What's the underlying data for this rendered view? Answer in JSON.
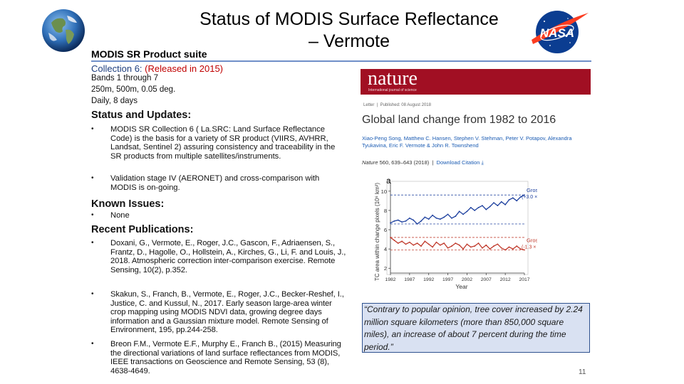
{
  "slide": {
    "title_line1": "Status of MODIS Surface Reflectance",
    "title_line2": "– Vermote",
    "page_number": "11"
  },
  "product": {
    "suite_label": "MODIS SR Product suite",
    "collection_prefix": "Collection 6: ",
    "collection_released": "(Released in 2015)",
    "bands": "Bands 1 through 7",
    "resolution": "250m, 500m, 0.05 deg.",
    "frequency": "Daily, 8 days"
  },
  "status": {
    "heading": "Status and Updates:",
    "items": [
      "MODIS SR Collection 6 ( La.SRC: Land Surface Reflectance Code) is the basis for a variety of SR product (VIIRS, AVHRR, Landsat, Sentinel 2) assuring consistency and traceability in the SR products from multiple satellites/instruments.",
      "Validation stage IV (AERONET) and cross-comparison with MODIS is on-going."
    ]
  },
  "issues": {
    "heading": "Known Issues:",
    "items": [
      "None"
    ]
  },
  "publications": {
    "heading": "Recent Publications:",
    "items": [
      "Doxani, G., Vermote, E., Roger, J.C., Gascon, F., Adriaensen, S., Frantz, D., Hagolle, O., Hollstein, A., Kirches, G., Li, F. and Louis, J., 2018. Atmospheric correction inter-comparison exercise. Remote Sensing, 10(2), p.352.",
      "Skakun, S., Franch, B., Vermote, E., Roger, J.C., Becker-Reshef, I., Justice, C. and Kussul, N., 2017. Early season large-area winter crop mapping using MODIS NDVI data, growing degree days information and a Gaussian mixture model. Remote Sensing of Environment, 195, pp.244-258.",
      "Breon F.M., Vermote E.F., Murphy E., Franch B., (2015) Measuring the directional variations of land surface reflectances from MODIS, IEEE transactions on Geoscience and Remote Sensing, 53 (8), 4638-4649."
    ]
  },
  "article": {
    "journal": "nature",
    "journal_sub": "International journal of science",
    "type": "Letter",
    "published": "Published: 08 August 2018",
    "title": "Global land change from 1982 to 2016",
    "authors": "Xiao-Peng Song, Matthew C. Hansen, Stephen V. Stehman, Peter V. Potapov, Alexandra Tyukavina, Eric F. Vermote & John R. Townshend",
    "citation_journal": "Nature",
    "citation_rest": " 560, 639–643 (2018)",
    "citation_link": "Download Citation"
  },
  "quote": {
    "text": "“Contrary to popular opinion, tree cover increased by 2.24 million square kilometers (more than 850,000 square miles), an increase of about 7 percent during the time period.”"
  },
  "colors": {
    "nature_red": "#a10f23",
    "gain_blue": "#1c3f9e",
    "loss_red": "#c0392b",
    "quote_bg": "#d9e1f2"
  },
  "chart_data": {
    "type": "line",
    "panel_label": "a",
    "ylabel": "TC area within change pixels (10⁶ km²)",
    "xlabel": "Year",
    "x": [
      1982,
      1983,
      1984,
      1985,
      1986,
      1987,
      1988,
      1989,
      1990,
      1991,
      1992,
      1993,
      1994,
      1995,
      1996,
      1997,
      1998,
      1999,
      2000,
      2001,
      2002,
      2003,
      2004,
      2005,
      2006,
      2007,
      2008,
      2009,
      2010,
      2011,
      2012,
      2013,
      2014,
      2015,
      2016,
      2017
    ],
    "xticks": [
      1982,
      1987,
      1992,
      1997,
      2002,
      2007,
      2012,
      2017
    ],
    "yticks": [
      2,
      4,
      6,
      8,
      10
    ],
    "ylim": [
      1.5,
      10.8
    ],
    "series": [
      {
        "name": "Gross gain",
        "annotation_line1": "Gross gain",
        "annotation_line2": "(+3.0 × 10⁶ km²)",
        "baseline": 6.6,
        "final": 9.6,
        "values": [
          6.7,
          6.9,
          7.0,
          6.8,
          6.9,
          7.2,
          7.0,
          6.6,
          6.9,
          7.3,
          7.1,
          7.5,
          7.2,
          7.1,
          7.3,
          7.6,
          7.2,
          7.4,
          7.9,
          7.6,
          7.9,
          8.3,
          8.0,
          8.3,
          8.5,
          8.1,
          8.4,
          8.8,
          8.5,
          8.9,
          8.6,
          9.1,
          9.3,
          9.0,
          9.4,
          9.6
        ]
      },
      {
        "name": "Gross loss",
        "annotation_line1": "Gross loss",
        "annotation_line2": "(-1.3 × 10⁶ km²)",
        "baseline": 5.2,
        "final": 3.9,
        "values": [
          5.2,
          4.9,
          4.6,
          4.8,
          4.5,
          4.7,
          4.4,
          4.6,
          4.3,
          4.8,
          4.5,
          4.2,
          4.7,
          4.4,
          4.6,
          4.1,
          4.3,
          4.6,
          4.4,
          4.0,
          4.5,
          4.2,
          4.3,
          4.6,
          4.1,
          4.4,
          4.0,
          4.3,
          4.5,
          4.1,
          3.9,
          4.2,
          4.0,
          4.3,
          4.0,
          3.9
        ]
      }
    ]
  }
}
